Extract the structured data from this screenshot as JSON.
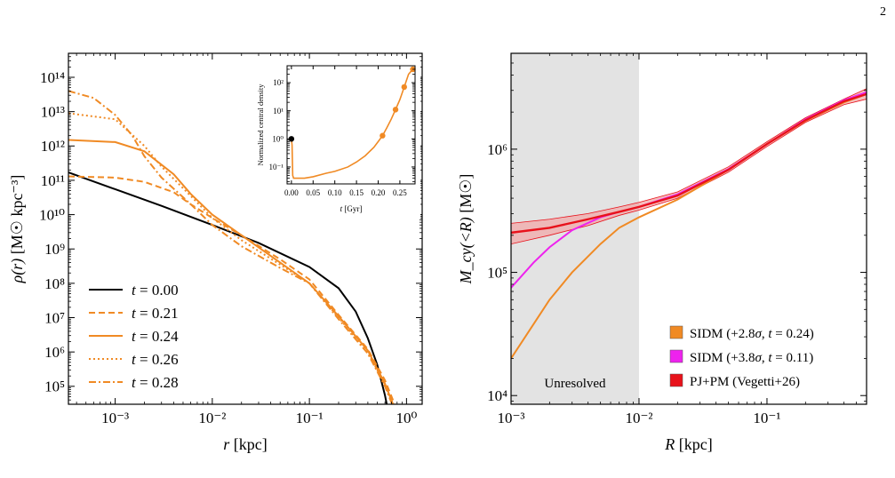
{
  "page": {
    "number": "2"
  },
  "colors": {
    "black": "#000000",
    "orange": "#f08a24",
    "magenta": "#ee22ee",
    "red": "#e8121b",
    "band": "#f2a9a9",
    "unresolved": "#e3e3e3"
  },
  "chart_data": [
    {
      "id": "left",
      "type": "line",
      "xscale": "log",
      "yscale": "log",
      "xlim": [
        0.00033,
        1.45
      ],
      "ylim": [
        30000,
        500000000000000
      ],
      "xlabel": {
        "var": "r",
        "unit": "[kpc]"
      },
      "ylabel": {
        "var": "ρ(r)",
        "unit": "[M☉ kpc⁻³]"
      },
      "xticks": [
        {
          "value": 0.001,
          "label": "10⁻³"
        },
        {
          "value": 0.01,
          "label": "10⁻²"
        },
        {
          "value": 0.1,
          "label": "10⁻¹"
        },
        {
          "value": 1,
          "label": "10⁰"
        }
      ],
      "yticks": [
        {
          "value": 100000,
          "label": "10⁵"
        },
        {
          "value": 1000000,
          "label": "10⁶"
        },
        {
          "value": 10000000,
          "label": "10⁷"
        },
        {
          "value": 100000000,
          "label": "10⁸"
        },
        {
          "value": 1000000000,
          "label": "10⁹"
        },
        {
          "value": 10000000000,
          "label": "10¹⁰"
        },
        {
          "value": 100000000000,
          "label": "10¹¹"
        },
        {
          "value": 1000000000000,
          "label": "10¹²"
        },
        {
          "value": 10000000000000,
          "label": "10¹³"
        },
        {
          "value": 100000000000000,
          "label": "10¹⁴"
        }
      ],
      "legend": {
        "placement": "bottom-left"
      },
      "series": [
        {
          "name": "t = 0.00",
          "t_label": "t",
          "t_value": "= 0.00",
          "color": "#000000",
          "dash": "solid",
          "x": [
            0.00033,
            0.001,
            0.003,
            0.01,
            0.03,
            0.1,
            0.2,
            0.3,
            0.4,
            0.5,
            0.6,
            0.7
          ],
          "y": [
            170000000000,
            55000000000,
            18000000000,
            5000000000,
            1500000000,
            300000000,
            72000000,
            15000000,
            2500000,
            420000,
            55000,
            6000
          ]
        },
        {
          "name": "t = 0.21",
          "t_label": "t",
          "t_value": "= 0.21",
          "color": "#f08a24",
          "dash": "dashed",
          "x": [
            0.00033,
            0.001,
            0.002,
            0.004,
            0.006,
            0.01,
            0.02,
            0.05,
            0.1,
            0.2,
            0.4,
            0.6,
            0.8
          ],
          "y": [
            130000000000,
            120000000000,
            90000000000,
            45000000000,
            20000000000,
            8000000000,
            2500000000,
            500000000,
            130000000,
            12000000,
            1200000,
            150000,
            20000
          ]
        },
        {
          "name": "t = 0.24",
          "t_label": "t",
          "t_value": "= 0.24",
          "color": "#f08a24",
          "dash": "solid",
          "x": [
            0.00033,
            0.001,
            0.002,
            0.004,
            0.006,
            0.01,
            0.02,
            0.05,
            0.1,
            0.2,
            0.4,
            0.6,
            0.8
          ],
          "y": [
            1500000000000,
            1300000000000,
            700000000000,
            150000000000,
            40000000000,
            10000000000,
            2500000000,
            400000000,
            100000000,
            11000000,
            1100000,
            120000,
            15000
          ]
        },
        {
          "name": "t = 0.26",
          "t_label": "t",
          "t_value": "= 0.26",
          "color": "#f08a24",
          "dash": "dotted",
          "x": [
            0.00033,
            0.001,
            0.002,
            0.003,
            0.006,
            0.01,
            0.02,
            0.05,
            0.1,
            0.2,
            0.4,
            0.6,
            0.8
          ],
          "y": [
            9000000000000,
            6000000000000,
            1000000000000,
            250000000000,
            35000000000,
            8000000000,
            1800000000,
            350000000,
            100000000,
            10000000,
            1000000,
            110000,
            14000
          ]
        },
        {
          "name": "t = 0.28",
          "t_label": "t",
          "t_value": "= 0.28",
          "color": "#f08a24",
          "dash": "dashdot",
          "x": [
            0.00033,
            0.0006,
            0.001,
            0.0015,
            0.002,
            0.003,
            0.006,
            0.01,
            0.02,
            0.05,
            0.1,
            0.2,
            0.4,
            0.6,
            0.8
          ],
          "y": [
            40000000000000,
            25000000000000,
            8000000000000,
            2000000000000,
            500000000000,
            120000000000,
            20000000000,
            5000000000,
            1200000000,
            280000000,
            100000000,
            9000000,
            900000,
            100000,
            13000
          ]
        }
      ]
    },
    {
      "id": "inset",
      "type": "line",
      "xscale": "linear",
      "yscale": "log",
      "xlim": [
        -0.01,
        0.285
      ],
      "ylim": [
        0.025,
        400
      ],
      "xlabel": {
        "var": "t",
        "unit": "[Gyr]"
      },
      "ylabel": "Normalized central density",
      "xticks": [
        {
          "value": 0.0,
          "label": "0.00"
        },
        {
          "value": 0.05,
          "label": "0.05"
        },
        {
          "value": 0.1,
          "label": "0.10"
        },
        {
          "value": 0.15,
          "label": "0.15"
        },
        {
          "value": 0.2,
          "label": "0.20"
        },
        {
          "value": 0.25,
          "label": "0.25"
        }
      ],
      "yticks": [
        {
          "value": 0.1,
          "label": "10⁻¹"
        },
        {
          "value": 1,
          "label": "10⁰"
        },
        {
          "value": 10,
          "label": "10¹"
        },
        {
          "value": 100,
          "label": "10²"
        }
      ],
      "series": [
        {
          "color": "#f08a24",
          "x": [
            0.0,
            0.0015,
            0.003,
            0.005,
            0.01,
            0.03,
            0.05,
            0.08,
            0.1,
            0.13,
            0.15,
            0.17,
            0.19,
            0.2,
            0.21,
            0.22,
            0.23,
            0.24,
            0.25,
            0.26,
            0.27,
            0.28
          ],
          "y": [
            1.0,
            0.6,
            0.05,
            0.04,
            0.04,
            0.04,
            0.045,
            0.06,
            0.07,
            0.1,
            0.15,
            0.25,
            0.5,
            0.8,
            1.3,
            2.5,
            5,
            11,
            25,
            70,
            200,
            300
          ]
        }
      ],
      "markers": [
        {
          "x": 0.0,
          "y": 1.0,
          "color": "#000000"
        },
        {
          "x": 0.21,
          "y": 1.3,
          "color": "#f08a24"
        },
        {
          "x": 0.24,
          "y": 11,
          "color": "#f08a24"
        },
        {
          "x": 0.26,
          "y": 70,
          "color": "#f08a24"
        },
        {
          "x": 0.28,
          "y": 300,
          "color": "#f08a24"
        }
      ]
    },
    {
      "id": "right",
      "type": "line",
      "xscale": "log",
      "yscale": "log",
      "xlim": [
        0.001,
        0.6
      ],
      "ylim": [
        8500,
        6000000
      ],
      "xlabel": {
        "var": "R",
        "unit": "[kpc]"
      },
      "ylabel": {
        "var": "M_cy(<R)",
        "unit": "[M☉]"
      },
      "xticks": [
        {
          "value": 0.001,
          "label": "10⁻³"
        },
        {
          "value": 0.01,
          "label": "10⁻²"
        },
        {
          "value": 0.1,
          "label": "10⁻¹"
        }
      ],
      "yticks": [
        {
          "value": 10000,
          "label": "10⁴"
        },
        {
          "value": 100000,
          "label": "10⁵"
        },
        {
          "value": 1000000,
          "label": "10⁶"
        }
      ],
      "shaded_region": {
        "x": [
          0.001,
          0.01
        ],
        "label": "Unresolved"
      },
      "legend": {
        "placement": "bottom-right"
      },
      "band": {
        "x": [
          0.001,
          0.002,
          0.004,
          0.007,
          0.01,
          0.02,
          0.05,
          0.1,
          0.2,
          0.4,
          0.6
        ],
        "lo": [
          170000,
          200000,
          240000,
          290000,
          320000,
          400000,
          650000,
          1050000,
          1650000,
          2300000,
          2550000
        ],
        "hi": [
          250000,
          270000,
          300000,
          340000,
          370000,
          450000,
          720000,
          1150000,
          1800000,
          2550000,
          3100000
        ]
      },
      "series": [
        {
          "name": "SIDM (+2.8σ, t = 0.24)",
          "label_pre": "SIDM (+2.8",
          "label_sigma": "σ",
          "label_mid": ", ",
          "label_t": "t",
          "label_post": " = 0.24)",
          "color": "#f08a24",
          "x": [
            0.001,
            0.0015,
            0.002,
            0.003,
            0.005,
            0.007,
            0.01,
            0.02,
            0.05,
            0.1,
            0.2,
            0.4,
            0.6
          ],
          "y": [
            20000,
            38000,
            60000,
            100000,
            170000,
            230000,
            280000,
            390000,
            680000,
            1100000,
            1700000,
            2400000,
            2800000
          ]
        },
        {
          "name": "SIDM (+3.8σ, t = 0.11)",
          "label_pre": "SIDM (+3.8",
          "label_sigma": "σ",
          "label_mid": ", ",
          "label_t": "t",
          "label_post": " = 0.11)",
          "color": "#ee22ee",
          "x": [
            0.001,
            0.0015,
            0.002,
            0.003,
            0.005,
            0.007,
            0.01,
            0.02,
            0.05,
            0.1,
            0.2,
            0.4,
            0.6
          ],
          "y": [
            75000,
            120000,
            160000,
            220000,
            280000,
            310000,
            340000,
            430000,
            690000,
            1100000,
            1750000,
            2500000,
            2900000
          ]
        },
        {
          "name": "PJ+PM (Vegetti+26)",
          "label_pre": "PJ+PM (Vegetti+26)",
          "label_sigma": "",
          "label_mid": "",
          "label_t": "",
          "label_post": "",
          "color": "#e8121b",
          "x": [
            0.001,
            0.002,
            0.004,
            0.007,
            0.01,
            0.02,
            0.05,
            0.1,
            0.2,
            0.4,
            0.6
          ],
          "y": [
            210000,
            230000,
            270000,
            310000,
            340000,
            420000,
            680000,
            1100000,
            1720000,
            2450000,
            2800000
          ]
        }
      ]
    }
  ]
}
